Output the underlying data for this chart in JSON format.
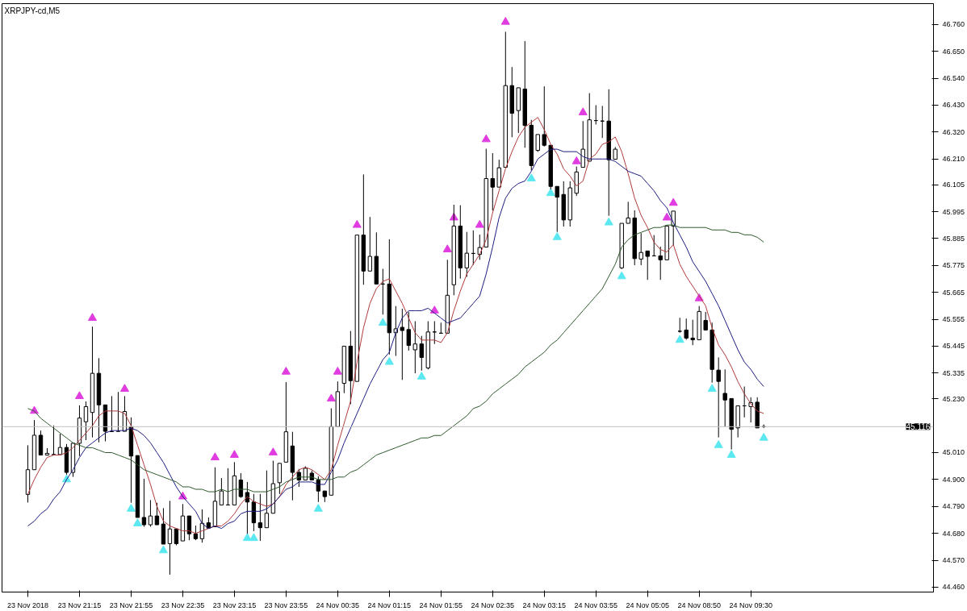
{
  "chart_data": {
    "type": "candlestick",
    "title": "XRPJPY-cd,M5",
    "categories": [
      "23 Nov 2018",
      null,
      null,
      null,
      null,
      null,
      null,
      null,
      "23 Nov 21:15",
      null,
      null,
      null,
      null,
      null,
      null,
      null,
      "23 Nov 21:55",
      null,
      null,
      null,
      null,
      null,
      null,
      null,
      "23 Nov 22:35",
      null,
      null,
      null,
      null,
      null,
      null,
      null,
      "23 Nov 23:15",
      null,
      null,
      null,
      null,
      null,
      null,
      null,
      "23 Nov 23:55",
      null,
      null,
      null,
      null,
      null,
      null,
      null,
      "24 Nov 00:35",
      null,
      null,
      null,
      null,
      null,
      null,
      null,
      "24 Nov 01:15",
      null,
      null,
      null,
      null,
      null,
      null,
      null,
      "24 Nov 01:55",
      null,
      null,
      null,
      null,
      null,
      null,
      null,
      "24 Nov 02:35",
      null,
      null,
      null,
      null,
      null,
      null,
      null,
      "24 Nov 03:15",
      null,
      null,
      null,
      null,
      null,
      null,
      null,
      "24 Nov 03:55",
      null,
      null,
      null,
      null,
      null,
      null,
      null,
      "24 Nov 05:05",
      null,
      null,
      null,
      null,
      null,
      null,
      null,
      "24 Nov 08:50",
      null,
      null,
      null,
      null,
      null,
      null,
      null,
      "24 Nov 09:30",
      null,
      null
    ],
    "ohlc": [
      [
        44.839,
        45.04,
        44.806,
        44.94
      ],
      [
        44.94,
        45.143,
        44.94,
        45.081
      ],
      [
        45.081,
        45.1,
        45.0,
        45.0
      ],
      [
        45.0,
        45.028,
        45.0,
        45.007
      ],
      [
        45.002,
        45.121,
        45.002,
        45.002
      ],
      [
        45.002,
        45.087,
        45.002,
        45.031
      ],
      [
        45.031,
        45.045,
        44.92,
        44.929
      ],
      [
        44.929,
        45.05,
        44.911,
        45.048
      ],
      [
        45.048,
        45.203,
        44.996,
        45.151
      ],
      [
        45.136,
        45.219,
        45.061,
        45.198
      ],
      [
        45.174,
        45.525,
        45.072,
        45.334
      ],
      [
        45.334,
        45.396,
        45.052,
        45.205
      ],
      [
        45.205,
        45.205,
        45.056,
        45.097
      ],
      [
        45.096,
        45.241,
        45.096,
        45.096
      ],
      [
        45.097,
        45.258,
        45.097,
        45.097
      ],
      [
        45.097,
        45.241,
        45.097,
        45.178
      ],
      [
        45.116,
        45.154,
        44.805,
        44.996
      ],
      [
        44.998,
        44.998,
        44.745,
        44.745
      ],
      [
        44.745,
        44.903,
        44.707,
        44.715
      ],
      [
        44.715,
        44.816,
        44.707,
        44.751
      ],
      [
        44.751,
        44.805,
        44.715,
        44.715
      ],
      [
        44.718,
        44.783,
        44.636,
        44.636
      ],
      [
        44.638,
        44.813,
        44.511,
        44.698
      ],
      [
        44.698,
        44.698,
        44.631,
        44.638
      ],
      [
        44.649,
        44.8,
        44.649,
        44.751
      ],
      [
        44.751,
        44.751,
        44.652,
        44.678
      ],
      [
        44.678,
        44.712,
        44.652,
        44.658
      ],
      [
        44.658,
        44.778,
        44.642,
        44.721
      ],
      [
        44.723,
        44.745,
        44.701,
        44.701
      ],
      [
        44.707,
        44.95,
        44.707,
        44.811
      ],
      [
        44.796,
        44.906,
        44.796,
        44.853
      ],
      [
        44.796,
        44.946,
        44.796,
        44.796
      ],
      [
        44.796,
        44.971,
        44.796,
        44.915
      ],
      [
        44.898,
        44.926,
        44.825,
        44.83
      ],
      [
        44.847,
        44.89,
        44.678,
        44.808
      ],
      [
        44.808,
        44.841,
        44.689,
        44.723
      ],
      [
        44.723,
        44.841,
        44.649,
        44.703
      ],
      [
        44.703,
        44.937,
        44.703,
        44.762
      ],
      [
        44.762,
        44.977,
        44.762,
        44.883
      ],
      [
        44.887,
        44.966,
        44.841,
        44.966
      ],
      [
        44.971,
        45.298,
        44.971,
        45.095
      ],
      [
        45.037,
        45.095,
        44.815,
        44.929
      ],
      [
        44.929,
        44.943,
        44.87,
        44.898
      ],
      [
        44.898,
        44.954,
        44.898,
        44.946
      ],
      [
        44.926,
        44.937,
        44.898,
        44.898
      ],
      [
        44.898,
        44.913,
        44.808,
        44.853
      ],
      [
        44.853,
        44.853,
        44.808,
        44.83
      ],
      [
        44.836,
        45.191,
        44.836,
        45.116
      ],
      [
        45.116,
        45.301,
        45.116,
        45.259
      ],
      [
        45.293,
        45.445,
        45.253,
        45.445
      ],
      [
        45.445,
        45.507,
        45.208,
        45.304
      ],
      [
        45.301,
        45.899,
        45.301,
        45.899
      ],
      [
        45.899,
        46.147,
        45.696,
        45.752
      ],
      [
        45.752,
        45.973,
        45.752,
        45.812
      ],
      [
        45.812,
        45.91,
        45.699,
        45.699
      ],
      [
        45.699,
        45.761,
        45.574,
        45.699
      ],
      [
        45.699,
        45.882,
        45.411,
        45.5
      ],
      [
        45.5,
        45.609,
        45.405,
        45.516
      ],
      [
        45.522,
        45.598,
        45.307,
        45.509
      ],
      [
        45.513,
        45.585,
        45.427,
        45.448
      ],
      [
        45.43,
        45.547,
        45.334,
        45.454
      ],
      [
        45.454,
        45.487,
        45.345,
        45.399
      ],
      [
        45.356,
        45.547,
        45.35,
        45.503
      ],
      [
        45.503,
        45.547,
        45.454,
        45.503
      ],
      [
        45.498,
        45.541,
        45.498,
        45.498
      ],
      [
        45.498,
        45.798,
        45.498,
        45.653
      ],
      [
        45.696,
        46.023,
        45.653,
        45.936
      ],
      [
        45.936,
        46.021,
        45.721,
        45.765
      ],
      [
        45.765,
        45.912,
        45.728,
        45.825
      ],
      [
        45.824,
        45.918,
        45.777,
        45.824
      ],
      [
        45.82,
        45.901,
        45.798,
        45.848
      ],
      [
        45.85,
        46.252,
        45.85,
        46.13
      ],
      [
        46.13,
        46.234,
        45.999,
        46.095
      ],
      [
        46.095,
        46.207,
        46.095,
        46.174
      ],
      [
        46.176,
        46.73,
        46.176,
        46.51
      ],
      [
        46.51,
        46.586,
        46.299,
        46.397
      ],
      [
        46.408,
        46.501,
        46.316,
        46.501
      ],
      [
        46.496,
        46.692,
        46.256,
        46.347
      ],
      [
        46.348,
        46.37,
        46.163,
        46.183
      ],
      [
        46.245,
        46.31,
        46.239,
        46.31
      ],
      [
        46.31,
        46.507,
        46.261,
        46.266
      ],
      [
        46.266,
        46.266,
        46.086,
        46.098
      ],
      [
        46.098,
        46.098,
        45.912,
        46.054
      ],
      [
        46.065,
        46.119,
        45.934,
        45.961
      ],
      [
        45.961,
        46.119,
        45.934,
        46.092
      ],
      [
        46.07,
        46.179,
        46.059,
        46.157
      ],
      [
        46.176,
        46.365,
        46.176,
        46.25
      ],
      [
        46.201,
        46.479,
        46.201,
        46.37
      ],
      [
        46.367,
        46.43,
        46.351,
        46.367
      ],
      [
        46.365,
        46.427,
        46.296,
        46.365
      ],
      [
        46.365,
        46.495,
        45.978,
        46.207
      ],
      [
        46.209,
        46.259,
        46.209,
        46.25
      ],
      [
        45.765,
        45.947,
        45.76,
        45.947
      ],
      [
        45.947,
        46.035,
        45.947,
        45.969
      ],
      [
        45.969,
        46.0,
        45.776,
        45.803
      ],
      [
        45.801,
        45.907,
        45.776,
        45.828
      ],
      [
        45.834,
        45.834,
        45.716,
        45.812
      ],
      [
        45.814,
        45.899,
        45.814,
        45.814
      ],
      [
        45.814,
        45.852,
        45.716,
        45.798
      ],
      [
        45.798,
        45.936,
        45.798,
        45.936
      ],
      [
        45.936,
        45.997,
        45.857,
        45.997
      ],
      [
        45.506,
        45.561,
        45.5,
        45.506
      ],
      [
        45.511,
        45.558,
        45.471,
        45.478
      ],
      [
        45.478,
        45.553,
        45.449,
        45.471
      ],
      [
        45.471,
        45.609,
        45.471,
        45.587
      ],
      [
        45.55,
        45.585,
        45.511,
        45.511
      ],
      [
        45.511,
        45.541,
        45.296,
        45.35
      ],
      [
        45.347,
        45.399,
        45.072,
        45.301
      ],
      [
        45.252,
        45.35,
        45.116,
        45.225
      ],
      [
        45.231,
        45.231,
        45.023,
        45.105
      ],
      [
        45.111,
        45.201,
        45.072,
        45.201
      ],
      [
        45.201,
        45.28,
        45.154,
        45.201
      ],
      [
        45.198,
        45.236,
        45.133,
        45.214
      ],
      [
        45.216,
        45.236,
        45.111,
        45.111
      ],
      [
        45.116,
        45.125,
        45.11,
        45.116
      ]
    ],
    "series": [
      {
        "type": "line",
        "color": "#b03a3a",
        "values": [
          44.84,
          44.9,
          44.95,
          44.99,
          45.0,
          45.0,
          45.01,
          45.03,
          45.06,
          45.09,
          45.12,
          45.16,
          45.18,
          45.18,
          45.18,
          45.17,
          45.12,
          45.04,
          44.96,
          44.88,
          44.79,
          44.73,
          44.71,
          44.7,
          44.69,
          44.69,
          44.68,
          44.69,
          44.7,
          44.71,
          44.71,
          44.73,
          44.76,
          44.8,
          44.83,
          44.81,
          44.8,
          44.79,
          44.8,
          44.83,
          44.88,
          44.91,
          44.94,
          44.95,
          44.94,
          44.92,
          44.9,
          44.94,
          45.04,
          45.13,
          45.22,
          45.38,
          45.52,
          45.62,
          45.68,
          45.71,
          45.72,
          45.67,
          45.62,
          45.56,
          45.5,
          45.47,
          45.47,
          45.47,
          45.46,
          45.5,
          45.59,
          45.67,
          45.74,
          45.78,
          45.82,
          45.88,
          45.99,
          46.08,
          46.17,
          46.24,
          46.3,
          46.34,
          46.36,
          46.38,
          46.33,
          46.27,
          46.23,
          46.17,
          46.14,
          46.1,
          46.12,
          46.21,
          46.23,
          46.27,
          46.28,
          46.3,
          46.24,
          46.15,
          46.05,
          45.98,
          45.93,
          45.87,
          45.84,
          45.83,
          45.86,
          45.78,
          45.73,
          45.69,
          45.65,
          45.61,
          45.52,
          45.45,
          45.41,
          45.36,
          45.3,
          45.25,
          45.21,
          45.18,
          45.17
        ]
      },
      {
        "type": "line",
        "color": "#1c1c80",
        "values": [
          44.71,
          44.73,
          44.76,
          44.78,
          44.82,
          44.85,
          44.9,
          44.94,
          44.99,
          45.03,
          45.05,
          45.07,
          45.09,
          45.1,
          45.1,
          45.1,
          45.11,
          45.1,
          45.08,
          45.05,
          45.01,
          44.97,
          44.92,
          44.87,
          44.83,
          44.8,
          44.77,
          44.72,
          44.7,
          44.71,
          44.7,
          44.72,
          44.73,
          44.76,
          44.77,
          44.77,
          44.77,
          44.78,
          44.8,
          44.83,
          44.86,
          44.87,
          44.89,
          44.89,
          44.89,
          44.88,
          44.88,
          44.93,
          44.98,
          45.05,
          45.11,
          45.17,
          45.23,
          45.29,
          45.34,
          45.39,
          45.42,
          45.5,
          45.56,
          45.59,
          45.59,
          45.59,
          45.6,
          45.58,
          45.56,
          45.54,
          45.55,
          45.56,
          45.59,
          45.62,
          45.65,
          45.74,
          45.85,
          45.97,
          46.05,
          46.09,
          46.11,
          46.12,
          46.16,
          46.21,
          46.23,
          46.25,
          46.25,
          46.24,
          46.24,
          46.24,
          46.22,
          46.21,
          46.21,
          46.21,
          46.21,
          46.2,
          46.18,
          46.16,
          46.15,
          46.14,
          46.11,
          46.08,
          46.04,
          46.01,
          45.95,
          45.9,
          45.85,
          45.79,
          45.75,
          45.71,
          45.66,
          45.61,
          45.55,
          45.49,
          45.43,
          45.38,
          45.35,
          45.31,
          45.28
        ]
      },
      {
        "type": "line",
        "color": "#2e5a2e",
        "values": [
          45.19,
          45.18,
          45.15,
          45.13,
          45.11,
          45.09,
          45.07,
          45.05,
          45.04,
          45.03,
          45.03,
          45.02,
          45.01,
          45.01,
          45.0,
          44.99,
          44.98,
          44.96,
          44.94,
          44.93,
          44.92,
          44.91,
          44.9,
          44.89,
          44.87,
          44.87,
          44.86,
          44.86,
          44.85,
          44.85,
          44.86,
          44.85,
          44.86,
          44.86,
          44.86,
          44.85,
          44.85,
          44.85,
          44.86,
          44.87,
          44.89,
          44.9,
          44.91,
          44.91,
          44.91,
          44.9,
          44.9,
          44.9,
          44.91,
          44.91,
          44.93,
          44.94,
          44.96,
          44.98,
          45.0,
          45.01,
          45.02,
          45.03,
          45.04,
          45.05,
          45.06,
          45.07,
          45.07,
          45.08,
          45.08,
          45.1,
          45.12,
          45.14,
          45.16,
          45.19,
          45.2,
          45.22,
          45.25,
          45.27,
          45.29,
          45.31,
          45.33,
          45.36,
          45.38,
          45.4,
          45.42,
          45.45,
          45.47,
          45.5,
          45.53,
          45.56,
          45.59,
          45.62,
          45.65,
          45.68,
          45.73,
          45.78,
          45.85,
          45.88,
          45.9,
          45.91,
          45.92,
          45.93,
          45.93,
          45.94,
          45.94,
          45.93,
          45.93,
          45.93,
          45.93,
          45.93,
          45.92,
          45.92,
          45.92,
          45.91,
          45.91,
          45.9,
          45.9,
          45.89,
          45.87
        ]
      },
      {
        "type": "scatter",
        "color": "#e03ce0",
        "marker": "triangle",
        "values": [
          null,
          45.18,
          null,
          null,
          null,
          null,
          null,
          null,
          45.24,
          null,
          45.56,
          null,
          null,
          null,
          null,
          45.27,
          null,
          null,
          null,
          null,
          null,
          null,
          null,
          null,
          44.83,
          null,
          null,
          null,
          null,
          44.99,
          null,
          null,
          45.0,
          null,
          null,
          null,
          null,
          null,
          45.01,
          null,
          45.34,
          null,
          null,
          null,
          null,
          null,
          null,
          45.23,
          45.34,
          null,
          null,
          45.94,
          null,
          null,
          null,
          null,
          null,
          null,
          null,
          null,
          null,
          null,
          null,
          45.59,
          null,
          45.84,
          45.97,
          null,
          null,
          null,
          45.94,
          46.29,
          null,
          null,
          46.77,
          null,
          null,
          null,
          null,
          null,
          null,
          null,
          null,
          null,
          null,
          46.2,
          46.4,
          null,
          null,
          null,
          null,
          null,
          null,
          null,
          null,
          null,
          null,
          null,
          null,
          45.97,
          46.03,
          null,
          null,
          null,
          45.64,
          null,
          null,
          null,
          null,
          null,
          null,
          null,
          null,
          null,
          null
        ]
      },
      {
        "type": "scatter",
        "color": "#5ce8f0",
        "marker": "triangle",
        "values": [
          null,
          null,
          null,
          null,
          null,
          null,
          44.9,
          null,
          null,
          null,
          null,
          null,
          null,
          null,
          null,
          null,
          44.78,
          44.72,
          null,
          null,
          null,
          44.61,
          null,
          null,
          null,
          null,
          null,
          null,
          null,
          null,
          null,
          null,
          null,
          null,
          44.66,
          44.66,
          null,
          null,
          null,
          null,
          null,
          null,
          null,
          null,
          null,
          44.78,
          null,
          null,
          null,
          null,
          null,
          null,
          null,
          null,
          null,
          45.54,
          45.38,
          null,
          null,
          null,
          null,
          45.32,
          null,
          null,
          null,
          null,
          null,
          null,
          null,
          null,
          null,
          null,
          null,
          null,
          null,
          null,
          null,
          null,
          46.13,
          null,
          null,
          46.07,
          45.89,
          null,
          null,
          null,
          null,
          null,
          null,
          null,
          45.95,
          null,
          45.73,
          null,
          null,
          null,
          null,
          null,
          null,
          null,
          null,
          45.47,
          null,
          null,
          null,
          null,
          45.27,
          45.04,
          null,
          45.0,
          null,
          null,
          null,
          null,
          45.07
        ]
      }
    ],
    "ylim": [
      44.44,
      46.845
    ],
    "yticks": [
      {
        "value": 44.46,
        "label": "44.460"
      },
      {
        "value": 44.57,
        "label": "44.570"
      },
      {
        "value": 44.68,
        "label": "44.680"
      },
      {
        "value": 44.79,
        "label": "44.790"
      },
      {
        "value": 44.9,
        "label": "44.900"
      },
      {
        "value": 45.01,
        "label": "45.010"
      },
      {
        "value": 45.23,
        "label": "45.230"
      },
      {
        "value": 45.335,
        "label": "45.335"
      },
      {
        "value": 45.445,
        "label": "45.445"
      },
      {
        "value": 45.555,
        "label": "45.555"
      },
      {
        "value": 45.665,
        "label": "45.665"
      },
      {
        "value": 45.775,
        "label": "45.775"
      },
      {
        "value": 45.885,
        "label": "45.885"
      },
      {
        "value": 45.995,
        "label": "45.995"
      },
      {
        "value": 46.105,
        "label": "46.105"
      },
      {
        "value": 46.21,
        "label": "46.210"
      },
      {
        "value": 46.32,
        "label": "46.320"
      },
      {
        "value": 46.43,
        "label": "46.430"
      },
      {
        "value": 46.54,
        "label": "46.540"
      },
      {
        "value": 46.65,
        "label": "46.650"
      },
      {
        "value": 46.76,
        "label": "46.760"
      }
    ],
    "ref_lines": [
      {
        "axis": "y",
        "value": 45.116,
        "label": "45.116",
        "color": "#c0c0c0"
      }
    ],
    "grid": false
  }
}
